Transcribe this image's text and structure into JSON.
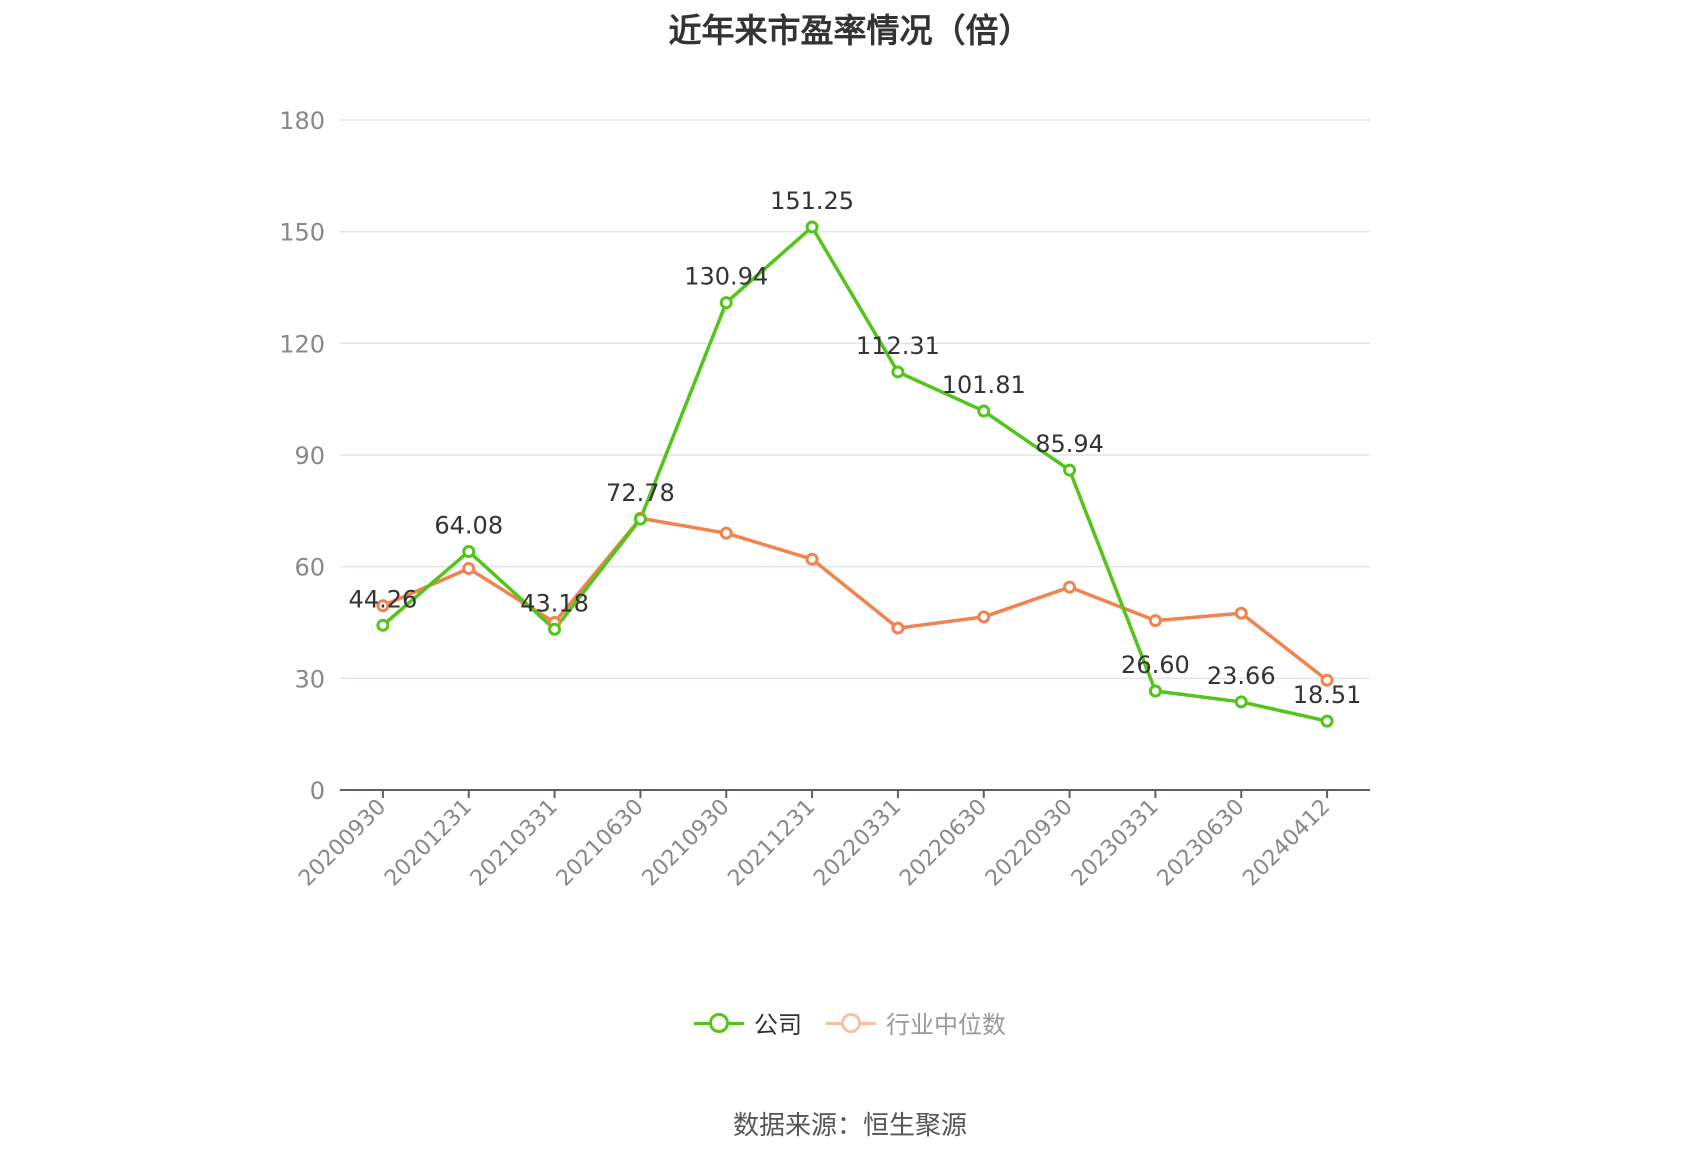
{
  "chart_data": {
    "type": "line",
    "title": "近年来市盈率情况（倍）",
    "categories": [
      "20200930",
      "20201231",
      "20210331",
      "20210630",
      "20210930",
      "20211231",
      "20220331",
      "20220630",
      "20220930",
      "20230331",
      "20230630",
      "20240412"
    ],
    "series": [
      {
        "name": "公司",
        "color": "#52c41a",
        "values": [
          44.26,
          64.08,
          43.18,
          72.78,
          130.94,
          151.25,
          112.31,
          101.81,
          85.94,
          26.6,
          23.66,
          18.51
        ],
        "labels": [
          "44.26",
          "64.08",
          "43.18",
          "72.78",
          "130.94",
          "151.25",
          "112.31",
          "101.81",
          "85.94",
          "26.60",
          "23.66",
          "18.51"
        ]
      },
      {
        "name": "行业中位数",
        "color": "#f0834f",
        "values": [
          49.5,
          59.5,
          45.0,
          73.0,
          69.0,
          62.0,
          43.5,
          46.5,
          54.5,
          45.5,
          47.5,
          29.5
        ]
      }
    ],
    "yticks": [
      0,
      30,
      60,
      90,
      120,
      150,
      180
    ],
    "ylim": [
      0,
      180
    ],
    "grid": true,
    "legend_position": "bottom"
  },
  "source_text": "数据来源：恒生聚源"
}
